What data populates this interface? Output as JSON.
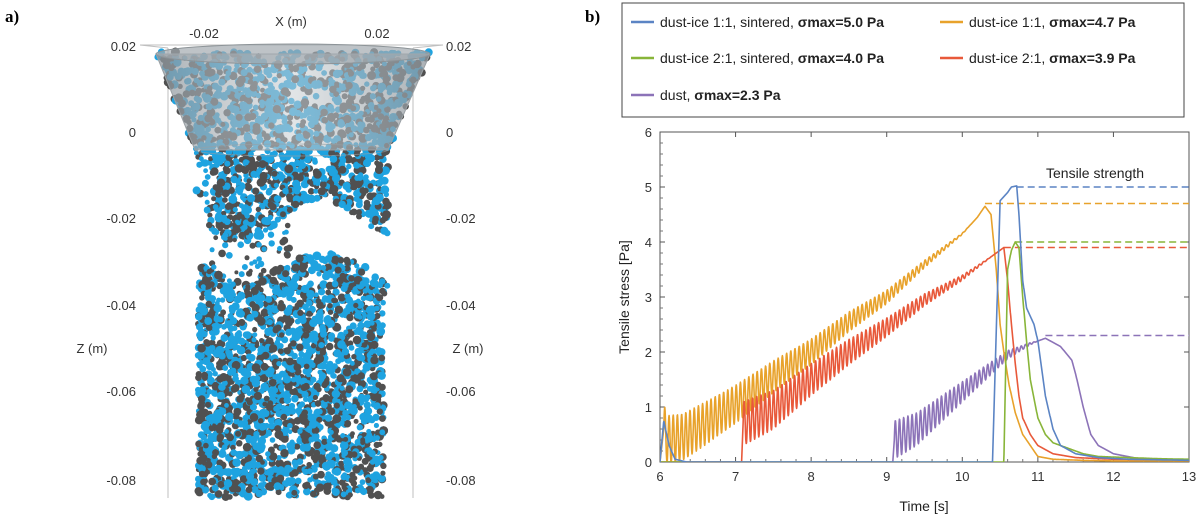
{
  "panel_a": {
    "label": "a)",
    "x_axis_label": "X (m)",
    "z_axis_label": "Z (m)",
    "x_ticks": [
      "-0.02",
      "0.02"
    ],
    "z_ticks": [
      "0.02",
      "0",
      "-0.02",
      "-0.04",
      "-0.06",
      "-0.08"
    ],
    "colors": {
      "ice_particle": "#1fa3e0",
      "dust_particle": "#505050",
      "funnel": "#b0b6bb"
    }
  },
  "panel_b": {
    "label": "b)"
  },
  "chart_data": {
    "type": "line",
    "xlabel": "Time [s]",
    "ylabel": "Tensile stress [Pa]",
    "xlim": [
      6,
      13
    ],
    "ylim": [
      0,
      6
    ],
    "x_ticks": [
      "6",
      "7",
      "8",
      "9",
      "10",
      "11",
      "12",
      "13"
    ],
    "y_ticks": [
      "0",
      "1",
      "2",
      "3",
      "4",
      "5",
      "6"
    ],
    "annotation": "Tensile strength",
    "legend_position": "top",
    "series": [
      {
        "name": "dust-ice 1:1, sintered,",
        "sigma_label": "σmax=5.0 Pa",
        "color": "#5b84c4",
        "sigma_max": 5.0,
        "oscillation_amplitude": 0.0,
        "points": [
          [
            6.0,
            0
          ],
          [
            6.05,
            0.75
          ],
          [
            6.12,
            0.3
          ],
          [
            6.2,
            0.05
          ],
          [
            6.35,
            0
          ],
          [
            6.5,
            0
          ],
          [
            7.0,
            0
          ],
          [
            8.0,
            0
          ],
          [
            9.0,
            0
          ],
          [
            10.0,
            0
          ],
          [
            10.4,
            0
          ],
          [
            10.5,
            4.75
          ],
          [
            10.6,
            4.9
          ],
          [
            10.65,
            5.0
          ],
          [
            10.72,
            5.02
          ],
          [
            10.75,
            4.5
          ],
          [
            10.8,
            3.3
          ],
          [
            10.85,
            2.8
          ],
          [
            10.95,
            2.5
          ],
          [
            11.0,
            2.2
          ],
          [
            11.1,
            1.2
          ],
          [
            11.2,
            0.6
          ],
          [
            11.3,
            0.3
          ],
          [
            11.5,
            0.15
          ],
          [
            11.8,
            0.08
          ],
          [
            12.2,
            0.05
          ],
          [
            12.6,
            0.04
          ],
          [
            13.0,
            0.03
          ]
        ]
      },
      {
        "name": "dust-ice 1:1,",
        "sigma_label": "σmax=4.7 Pa",
        "color": "#e8a22b",
        "sigma_max": 4.7,
        "oscillation_amplitude": 0.45,
        "points": [
          [
            6.0,
            0
          ],
          [
            6.05,
            0.6
          ],
          [
            6.1,
            0.4
          ],
          [
            6.3,
            0.45
          ],
          [
            6.6,
            0.7
          ],
          [
            7.0,
            1.05
          ],
          [
            7.5,
            1.55
          ],
          [
            8.0,
            2.0
          ],
          [
            8.5,
            2.55
          ],
          [
            9.0,
            3.0
          ],
          [
            9.5,
            3.6
          ],
          [
            10.0,
            4.15
          ],
          [
            10.2,
            4.45
          ],
          [
            10.3,
            4.65
          ],
          [
            10.38,
            4.5
          ],
          [
            10.45,
            3.5
          ],
          [
            10.5,
            2.5
          ],
          [
            10.55,
            2.0
          ],
          [
            10.62,
            1.4
          ],
          [
            10.7,
            0.9
          ],
          [
            10.8,
            0.5
          ],
          [
            10.9,
            0.3
          ],
          [
            11.0,
            0.1
          ],
          [
            11.2,
            0.05
          ],
          [
            11.6,
            0.03
          ],
          [
            12.0,
            0.02
          ],
          [
            13.0,
            0.02
          ]
        ]
      },
      {
        "name": "dust-ice 2:1, sintered,",
        "sigma_label": "σmax=4.0 Pa",
        "color": "#88b539",
        "sigma_max": 4.0,
        "oscillation_amplitude": 0.0,
        "points": [
          [
            6.0,
            0
          ],
          [
            7.0,
            0
          ],
          [
            8.0,
            0
          ],
          [
            9.0,
            0
          ],
          [
            10.0,
            0
          ],
          [
            10.55,
            0
          ],
          [
            10.6,
            3.5
          ],
          [
            10.65,
            3.85
          ],
          [
            10.7,
            4.0
          ],
          [
            10.75,
            3.9
          ],
          [
            10.8,
            3.0
          ],
          [
            10.85,
            2.2
          ],
          [
            10.9,
            1.5
          ],
          [
            11.0,
            0.8
          ],
          [
            11.1,
            0.5
          ],
          [
            11.2,
            0.35
          ],
          [
            11.4,
            0.25
          ],
          [
            11.6,
            0.15
          ],
          [
            11.8,
            0.1
          ],
          [
            12.2,
            0.08
          ],
          [
            12.6,
            0.06
          ],
          [
            13.0,
            0.05
          ]
        ]
      },
      {
        "name": "dust-ice 2:1,",
        "sigma_label": "σmax=3.9 Pa",
        "color": "#e8593a",
        "sigma_max": 3.9,
        "oscillation_amplitude": 0.4,
        "points": [
          [
            6.0,
            0
          ],
          [
            7.0,
            0
          ],
          [
            7.08,
            0
          ],
          [
            7.1,
            0.7
          ],
          [
            7.5,
            0.95
          ],
          [
            8.0,
            1.5
          ],
          [
            8.5,
            2.0
          ],
          [
            9.0,
            2.45
          ],
          [
            9.5,
            2.95
          ],
          [
            10.0,
            3.35
          ],
          [
            10.3,
            3.65
          ],
          [
            10.5,
            3.85
          ],
          [
            10.55,
            3.9
          ],
          [
            10.6,
            3.3
          ],
          [
            10.65,
            2.5
          ],
          [
            10.7,
            1.8
          ],
          [
            10.75,
            1.2
          ],
          [
            10.8,
            0.8
          ],
          [
            10.9,
            0.5
          ],
          [
            11.0,
            0.3
          ],
          [
            11.2,
            0.15
          ],
          [
            11.5,
            0.08
          ],
          [
            12.0,
            0.05
          ],
          [
            13.0,
            0.04
          ]
        ]
      },
      {
        "name": "dust,",
        "sigma_label": "σmax=2.3 Pa",
        "color": "#8c73b8",
        "sigma_max": 2.3,
        "oscillation_amplitude": 0.35,
        "points": [
          [
            6.0,
            0
          ],
          [
            7.0,
            0
          ],
          [
            8.0,
            0
          ],
          [
            9.0,
            0
          ],
          [
            9.08,
            0
          ],
          [
            9.1,
            0.4
          ],
          [
            9.4,
            0.6
          ],
          [
            9.8,
            1.05
          ],
          [
            10.2,
            1.5
          ],
          [
            10.6,
            1.95
          ],
          [
            10.9,
            2.15
          ],
          [
            11.1,
            2.25
          ],
          [
            11.3,
            2.1
          ],
          [
            11.45,
            1.85
          ],
          [
            11.5,
            1.6
          ],
          [
            11.6,
            1.0
          ],
          [
            11.7,
            0.5
          ],
          [
            11.8,
            0.3
          ],
          [
            12.0,
            0.15
          ],
          [
            12.3,
            0.07
          ],
          [
            12.6,
            0.05
          ],
          [
            13.0,
            0.04
          ]
        ]
      }
    ]
  }
}
